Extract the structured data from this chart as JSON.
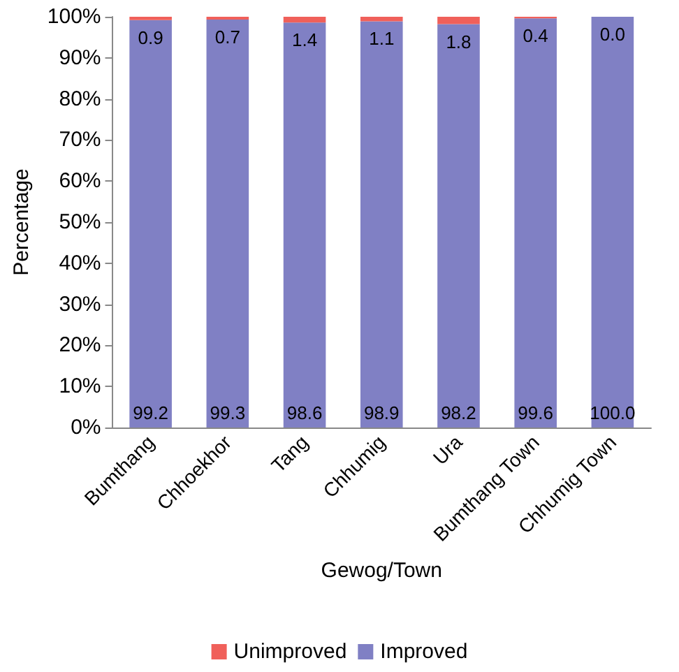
{
  "chart_data": {
    "type": "bar",
    "stacked": true,
    "xlabel": "Gewog/Town",
    "ylabel": "Percentage",
    "categories": [
      "Bumthang",
      "Chhoekhor",
      "Tang",
      "Chhumig",
      "Ura",
      "Bumthang Town",
      "Chhumig Town"
    ],
    "series": [
      {
        "name": "Improved",
        "color": "#8080c4",
        "values": [
          99.2,
          99.3,
          98.6,
          98.9,
          98.2,
          99.6,
          100.0
        ],
        "value_labels": [
          "99.2",
          "99.3",
          "98.6",
          "98.9",
          "98.2",
          "99.6",
          "100.0"
        ]
      },
      {
        "name": "Unimproved",
        "color": "#f0605a",
        "values": [
          0.9,
          0.7,
          1.4,
          1.1,
          1.8,
          0.4,
          0.0
        ],
        "value_labels": [
          "0.9",
          "0.7",
          "1.4",
          "1.1",
          "1.8",
          "0.4",
          "0.0"
        ]
      }
    ],
    "ylim": [
      0,
      100
    ],
    "yticks": [
      {
        "value": 0,
        "label": "0%"
      },
      {
        "value": 10,
        "label": "10%"
      },
      {
        "value": 20,
        "label": "20%"
      },
      {
        "value": 30,
        "label": "30%"
      },
      {
        "value": 40,
        "label": "40%"
      },
      {
        "value": 50,
        "label": "50%"
      },
      {
        "value": 60,
        "label": "60%"
      },
      {
        "value": 70,
        "label": "70%"
      },
      {
        "value": 80,
        "label": "80%"
      },
      {
        "value": 90,
        "label": "90%"
      },
      {
        "value": 100,
        "label": "100%"
      }
    ],
    "grid": false,
    "legend": "bottom"
  }
}
